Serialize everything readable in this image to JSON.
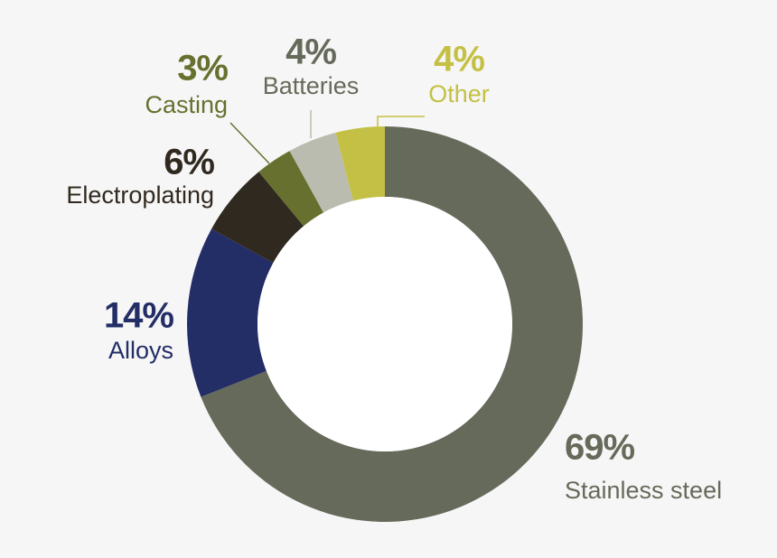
{
  "chart_data": {
    "type": "donut",
    "categories": [
      "Stainless steel",
      "Alloys",
      "Electroplating",
      "Casting",
      "Batteries",
      "Other"
    ],
    "values": [
      69,
      14,
      6,
      3,
      4,
      4
    ],
    "value_labels": [
      "69%",
      "14%",
      "6%",
      "3%",
      "4%",
      "4%"
    ],
    "colors": [
      "#666a5a",
      "#232d66",
      "#30291f",
      "#68702f",
      "#babcaf",
      "#c4c045"
    ],
    "label_colors": [
      "#666a5a",
      "#232d66",
      "#30291f",
      "#68702f",
      "#666a5a",
      "#c4c045"
    ]
  }
}
